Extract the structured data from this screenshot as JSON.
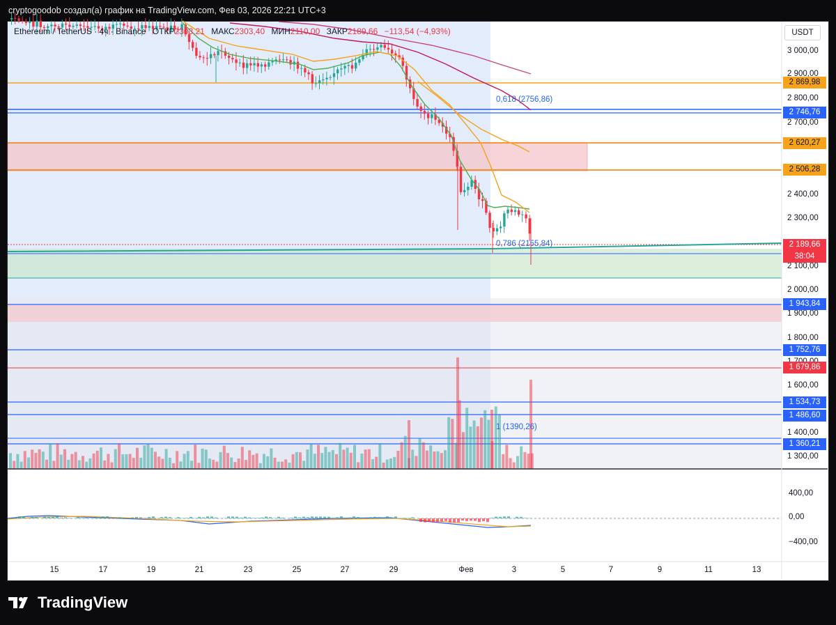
{
  "header": {
    "attribution": "cryptogoodob создал(а) график на TradingView.com, Фев 03, 2026 22:21 UTC+3"
  },
  "legend": {
    "symbol": "Ethereum / TetherUS · 4ч · Binance",
    "open_label": "ОТКР",
    "open_value": "2303,21",
    "high_label": "МАКС",
    "high_value": "2303,40",
    "low_label": "МИН",
    "low_value": "2110,00",
    "close_label": "ЗАКР",
    "close_value": "2189,66",
    "change": "−113,54 (−4,93%)"
  },
  "currency": "USDT",
  "price_axis": {
    "ticks": [
      "3 000,00",
      "2 900,00",
      "2 800,00",
      "2 700,00",
      "2 400,00",
      "2 300,00",
      "2 100,00",
      "2 000,00",
      "1 900,00",
      "1 800,00",
      "1 700,00",
      "1 600,00",
      "1 400,00",
      "1 300,00"
    ],
    "badges": [
      {
        "label": "2 869,98",
        "color": "#f7a21b",
        "text": "#131722"
      },
      {
        "label": "2 746,76",
        "color": "#2962ff",
        "text": "#ffffff"
      },
      {
        "label": "2 620,27",
        "color": "#f7a21b",
        "text": "#131722"
      },
      {
        "label": "2 506,28",
        "color": "#f7a21b",
        "text": "#131722"
      },
      {
        "label": "2 189,66",
        "color": "#f23645",
        "text": "#ffffff"
      },
      {
        "label": "38:04",
        "color": "#f23645",
        "text": "#ffffff"
      },
      {
        "label": "1 943,84",
        "color": "#2962ff",
        "text": "#ffffff"
      },
      {
        "label": "1 752,76",
        "color": "#2962ff",
        "text": "#ffffff"
      },
      {
        "label": "1 679,86",
        "color": "#f23645",
        "text": "#ffffff"
      },
      {
        "label": "1 534,73",
        "color": "#2962ff",
        "text": "#ffffff"
      },
      {
        "label": "1 486,60",
        "color": "#2962ff",
        "text": "#ffffff"
      },
      {
        "label": "1 360,21",
        "color": "#2962ff",
        "text": "#ffffff"
      }
    ]
  },
  "fib_labels": {
    "f618": "0,618 (2756,86)",
    "f786": "0,786 (2155,84)",
    "f1": "1 (1390,26)"
  },
  "oscillator_axis": {
    "ticks": [
      "400,00",
      "0,00",
      "−400,00"
    ]
  },
  "time_axis": {
    "ticks": [
      "15",
      "17",
      "19",
      "21",
      "23",
      "25",
      "27",
      "29",
      "Фев",
      "3",
      "5",
      "7",
      "9",
      "11",
      "13"
    ]
  },
  "brand": {
    "name": "TradingView"
  },
  "colors": {
    "up": "#26a69a",
    "down": "#f23645",
    "ema_fast": "#4caf50",
    "ema_mid": "#f7a21b",
    "ema_slow": "#c2185b",
    "fib_blue": "#2962ff"
  }
}
